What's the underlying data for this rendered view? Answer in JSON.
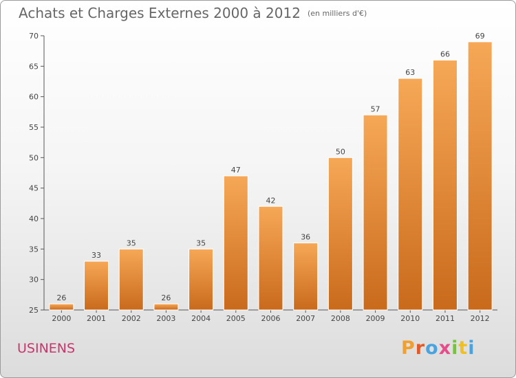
{
  "header": {
    "title": "Achats et Charges Externes 2000 à 2012",
    "subtitle": "(en milliers d'€)"
  },
  "commune_name": "USINENS",
  "logo": {
    "text": "Proxiti",
    "colors": [
      "#f0a030",
      "#e05a2a",
      "#4aa3df",
      "#e84a8a",
      "#7ac143",
      "#f0c020",
      "#4aa3df"
    ]
  },
  "colors": {
    "bar_top": "#f6a857",
    "bar_bottom": "#c96a1b",
    "axis": "#555555",
    "commune": "#c8366b"
  },
  "chart_data": {
    "type": "bar",
    "title": "Achats et Charges Externes 2000 à 2012",
    "subtitle": "(en milliers d'€)",
    "categories": [
      "2000",
      "2001",
      "2002",
      "2003",
      "2004",
      "2005",
      "2006",
      "2007",
      "2008",
      "2009",
      "2010",
      "2011",
      "2012"
    ],
    "values": [
      26,
      33,
      35,
      26,
      35,
      47,
      42,
      36,
      50,
      57,
      63,
      66,
      69
    ],
    "ylim": [
      25,
      70
    ],
    "yticks": [
      25,
      30,
      35,
      40,
      45,
      50,
      55,
      60,
      65,
      70
    ],
    "xlabel": "",
    "ylabel": "",
    "grid": false,
    "data_labels": true
  }
}
